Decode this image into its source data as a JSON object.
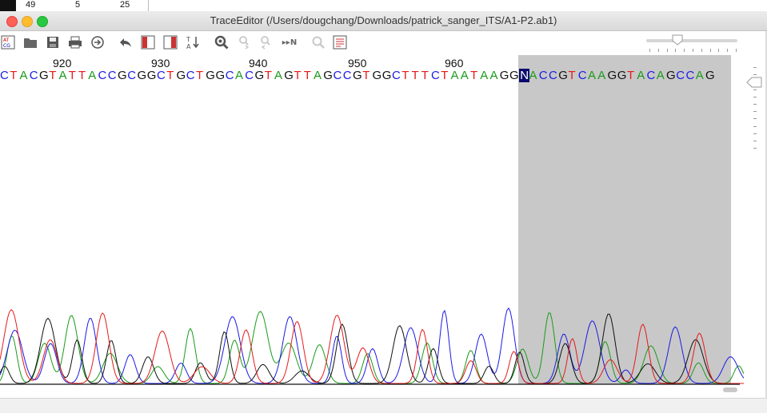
{
  "top_strip": {
    "values": [
      "49",
      "5",
      "25"
    ]
  },
  "window": {
    "title": "TraceEditor (/Users/dougchang/Downloads/patrick_sanger_ITS/A1-P2.ab1)"
  },
  "toolbar": {
    "buttons": [
      {
        "name": "atcg-button",
        "icon": "atcg-icon"
      },
      {
        "name": "open-button",
        "icon": "folder-icon"
      },
      {
        "name": "save-button",
        "icon": "floppy-icon"
      },
      {
        "name": "print-button",
        "icon": "printer-icon"
      },
      {
        "name": "goto-button",
        "icon": "arrow-circle-icon"
      },
      {
        "name": "undo-button",
        "icon": "undo-icon"
      },
      {
        "name": "trim-left-button",
        "icon": "trim-left-icon"
      },
      {
        "name": "trim-right-button",
        "icon": "trim-right-icon"
      },
      {
        "name": "sort-button",
        "icon": "sort-icon"
      },
      {
        "name": "find-button",
        "icon": "magnifier-icon"
      },
      {
        "name": "find-next-button",
        "icon": "find-next-icon"
      },
      {
        "name": "find-prev-button",
        "icon": "find-prev-icon"
      },
      {
        "name": "next-n-button",
        "icon": "next-n-icon"
      },
      {
        "name": "zoom-button",
        "icon": "zoom-icon"
      },
      {
        "name": "report-button",
        "icon": "report-icon"
      }
    ],
    "next_n_label": "▸▸N",
    "atcg_label": "AT CG"
  },
  "sequence": {
    "positions": [
      "920",
      "930",
      "940",
      "950",
      "960"
    ],
    "bases": "CTACGTATTACCGCGGCTGCTGGCACGTAGTTAGCCGTGGCTTTCTAATAAGGNACCGTCAAGGTACAGCCAG",
    "highlighted_index": 53,
    "colors": {
      "A": "#1a9a1a",
      "C": "#1a1ae6",
      "G": "#111111",
      "T": "#e61a1a",
      "N": "#ffffff"
    }
  },
  "trace": {
    "colors": [
      "#1a9a1a",
      "#1a1ae6",
      "#111111",
      "#e61a1a"
    ]
  }
}
